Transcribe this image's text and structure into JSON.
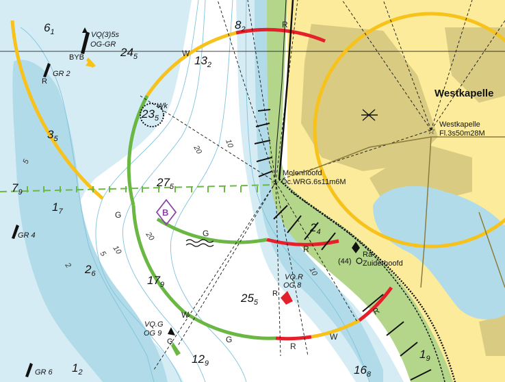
{
  "place_name": "Westkapelle",
  "lights": {
    "westkapelle": {
      "name": "Westkapelle",
      "characteristic": "Fl.3s50m28M"
    },
    "molenhoofd": {
      "name": "Molenhoofd",
      "characteristic": "Oc.WRG.6s11m6M"
    },
    "zuiderhoofd": {
      "name": "Zuiderhoofd",
      "radar": "Ra",
      "number": "(44)"
    }
  },
  "buoys": [
    {
      "id": "vq5s",
      "characteristic": "VQ(3)5s",
      "colour": "OG-GR",
      "type": "BYB"
    },
    {
      "id": "gr2",
      "label": "GR 2",
      "small": "R"
    },
    {
      "id": "gr4",
      "label": "GR 4"
    },
    {
      "id": "gr6",
      "label": "GR 6"
    },
    {
      "id": "vqr",
      "characteristic": "VQ.R",
      "colour": "OG 8",
      "small": "R"
    },
    {
      "id": "vqg",
      "characteristic": "VQ.G",
      "colour": "OG 9",
      "small": "G"
    }
  ],
  "soundings": [
    {
      "main": "6",
      "sub": "1"
    },
    {
      "main": "24",
      "sub": "5"
    },
    {
      "main": "8",
      "sub": "2"
    },
    {
      "main": "13",
      "sub": "2"
    },
    {
      "main": "3",
      "sub": "5"
    },
    {
      "main": "23",
      "sub": "5"
    },
    {
      "main": "27",
      "sub": "5"
    },
    {
      "main": "7",
      "sub": "9"
    },
    {
      "main": "1",
      "sub": "7"
    },
    {
      "main": "2",
      "sub": "4"
    },
    {
      "main": "2",
      "sub": "6"
    },
    {
      "main": "17",
      "sub": "9"
    },
    {
      "main": "25",
      "sub": "5"
    },
    {
      "main": "12",
      "sub": "9"
    },
    {
      "main": "1",
      "sub": "2"
    },
    {
      "main": "16",
      "sub": "8"
    },
    {
      "main": "1",
      "sub": "9"
    }
  ],
  "contour_labels": [
    "5",
    "10",
    "20",
    "20",
    "10",
    "5",
    "2",
    "10"
  ],
  "sector_labels": [
    "R",
    "W",
    "G",
    "R",
    "W",
    "G",
    "R",
    "W",
    "G",
    "R"
  ],
  "wreck_label": "Wk",
  "anchorage_label": "B",
  "weed_label": "G",
  "colors": {
    "sea_deep": "#ffffff",
    "sea_shallow": "#d6ecf5",
    "sea_very_shallow": "#b2dbe9",
    "land": "#fbeb9a",
    "built": "#d9cb82",
    "intertidal": "#b4d68a",
    "light_white": "#f6c21b",
    "light_red": "#e4202b",
    "light_green": "#6ab743",
    "magenta": "#8a45a6"
  }
}
